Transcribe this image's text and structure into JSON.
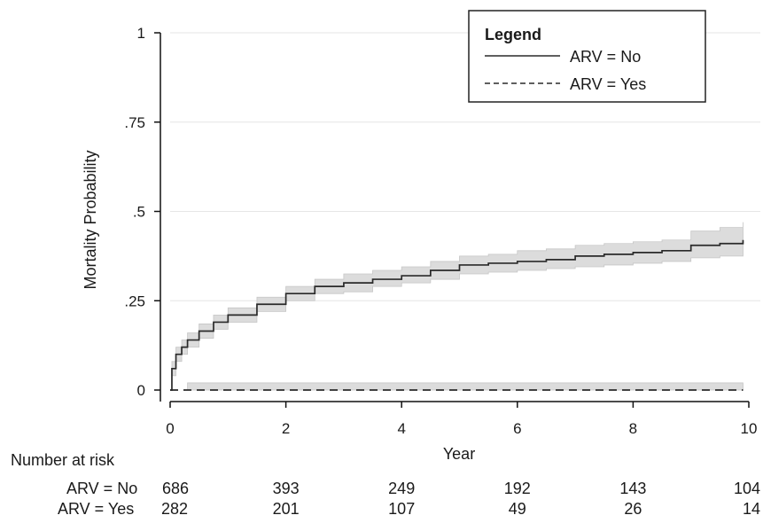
{
  "chart_data": {
    "type": "line",
    "title": "",
    "xlabel": "Year",
    "ylabel": "Mortality Probability",
    "xlim": [
      0,
      10
    ],
    "ylim": [
      0,
      1
    ],
    "x_ticks": [
      0,
      2,
      4,
      6,
      8,
      10
    ],
    "x_tick_labels": [
      "0",
      "2",
      "4",
      "6",
      "8",
      "10"
    ],
    "y_ticks": [
      0,
      0.25,
      0.5,
      0.75,
      1
    ],
    "y_tick_labels": [
      "0",
      ".25",
      ".5",
      ".75",
      "1"
    ],
    "grid": "horizontal",
    "legend": {
      "position": "top-right",
      "title": "Legend",
      "entries": [
        {
          "label": "ARV = No",
          "style": "solid"
        },
        {
          "label": "ARV = Yes",
          "style": "dashed"
        }
      ]
    },
    "series": [
      {
        "name": "ARV = No",
        "line_style": "solid",
        "color": "#2a2a2a",
        "band_color": "#dcdcdc",
        "x": [
          0,
          0.03,
          0.1,
          0.2,
          0.3,
          0.5,
          0.75,
          1,
          1.5,
          2,
          2.5,
          3,
          3.5,
          4,
          4.5,
          5,
          5.5,
          6,
          6.5,
          7,
          7.5,
          8,
          8.5,
          9,
          9.5,
          9.9
        ],
        "y": [
          0,
          0.06,
          0.1,
          0.12,
          0.14,
          0.165,
          0.19,
          0.21,
          0.24,
          0.27,
          0.29,
          0.3,
          0.31,
          0.32,
          0.335,
          0.35,
          0.355,
          0.36,
          0.365,
          0.375,
          0.38,
          0.385,
          0.39,
          0.405,
          0.41,
          0.42
        ],
        "ci_lower": [
          0,
          0.04,
          0.08,
          0.1,
          0.12,
          0.145,
          0.17,
          0.19,
          0.22,
          0.25,
          0.27,
          0.275,
          0.29,
          0.3,
          0.31,
          0.325,
          0.33,
          0.335,
          0.34,
          0.345,
          0.35,
          0.355,
          0.36,
          0.37,
          0.375,
          0.38
        ],
        "ci_upper": [
          0,
          0.08,
          0.12,
          0.14,
          0.16,
          0.185,
          0.21,
          0.23,
          0.26,
          0.29,
          0.31,
          0.325,
          0.335,
          0.345,
          0.36,
          0.375,
          0.38,
          0.39,
          0.395,
          0.405,
          0.41,
          0.415,
          0.42,
          0.445,
          0.455,
          0.47
        ]
      },
      {
        "name": "ARV = Yes",
        "line_style": "dashed",
        "color": "#2a2a2a",
        "band_color": "#dcdcdc",
        "x": [
          0,
          9.9
        ],
        "y": [
          0,
          0
        ],
        "ci_lower": [
          0,
          0
        ],
        "ci_upper": [
          0.02,
          0.02
        ]
      }
    ],
    "risk_table": {
      "header": "Number at risk",
      "rows": [
        {
          "label": "ARV = No",
          "values": [
            "686",
            "393",
            "249",
            "192",
            "143",
            "104"
          ]
        },
        {
          "label": "ARV = Yes",
          "values": [
            "282",
            "201",
            "107",
            "49",
            "26",
            "14"
          ]
        }
      ]
    }
  }
}
